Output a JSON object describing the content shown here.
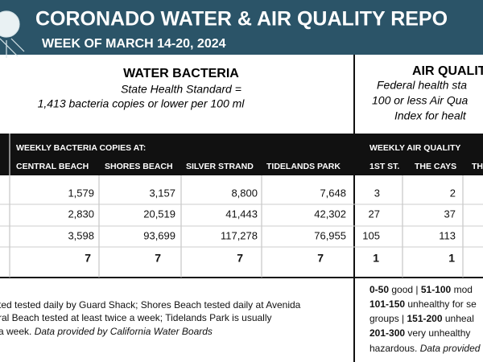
{
  "header": {
    "title": "CORONADO WATER & AIR QUALITY REPO",
    "subtitle": "WEEK OF MARCH 14-20, 2024"
  },
  "water": {
    "title": "WATER BACTERIA",
    "standard": [
      "State Health Standard  =",
      "1,413 bacteria copies or lower per 100 ml"
    ],
    "table": {
      "group": "WEEKLY BACTERIA COPIES AT:",
      "columns": [
        "CENTRAL BEACH",
        "SHORES BEACH",
        "SILVER STRAND",
        "TIDELANDS PARK"
      ],
      "rows": [
        [
          "1,579",
          "3,157",
          "8,800",
          "7,648"
        ],
        [
          "2,830",
          "20,519",
          "41,443",
          "42,302"
        ],
        [
          "3,598",
          "93,699",
          "117,278",
          "76,955"
        ]
      ],
      "totals": [
        "7",
        "7",
        "7",
        "7"
      ]
    },
    "note": [
      [
        "ted tested daily by Guard Shack; Shores Beach tested daily at Avenida"
      ],
      [
        "ral Beach tested at least twice a week; Tidelands Park is usually"
      ],
      [
        "a week. ",
        "Data provided by California Water Boards"
      ]
    ]
  },
  "air": {
    "title": "AIR QUALIT",
    "standard": [
      "Federal health sta",
      "100 or less Air Qua",
      "Index for healt"
    ],
    "table": {
      "group": "WEEKLY AIR QUALITY",
      "columns": [
        "1ST ST.",
        "THE CAYS",
        "TH"
      ],
      "rows": [
        [
          "3",
          "2"
        ],
        [
          "27",
          "37"
        ],
        [
          "105",
          "113"
        ]
      ],
      "totals": [
        "1",
        "1"
      ]
    },
    "legend": [
      [
        "0-50",
        " good | ",
        "51-100",
        " mod"
      ],
      [
        "101-150",
        " unhealthy for se"
      ],
      [
        "groups | ",
        "151-200",
        " unheal"
      ],
      [
        "201-300",
        " very unhealthy"
      ],
      [
        "hazardous. ",
        "Data provided"
      ]
    ]
  }
}
